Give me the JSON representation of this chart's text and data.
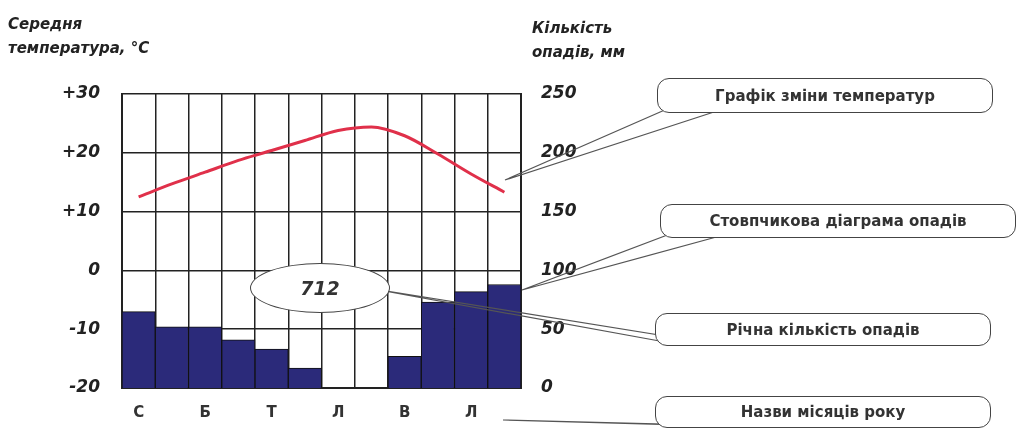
{
  "chart_data": {
    "type": "bar",
    "ylabel": "Середня температура, °C",
    "y2label": "Кількість опадів, мм",
    "categories": [
      "С",
      null,
      "Б",
      null,
      "Т",
      null,
      "Л",
      null,
      "В",
      null,
      "Л",
      null
    ],
    "series": [
      {
        "axis": "y2",
        "color": "#2b2a7a",
        "values": [
          65,
          52,
          52,
          41,
          33,
          17,
          0,
          0,
          27,
          73,
          82,
          88
        ]
      },
      {
        "type": "line",
        "axis": "y",
        "color": "#e0304a",
        "values": [
          12.5,
          14.7,
          16.7,
          18.7,
          20.4,
          22.1,
          23.8,
          24.4,
          22.9,
          19.8,
          16.4,
          13.3
        ]
      }
    ],
    "ylim": [
      -20,
      30
    ],
    "yticks": [
      {
        "value": -20,
        "label": "-20"
      },
      {
        "value": -10,
        "label": "-10"
      },
      0,
      {
        "value": 10,
        "label": "+10"
      },
      {
        "value": 20,
        "label": "+20"
      },
      {
        "value": 30,
        "label": "+30"
      }
    ],
    "y2lim": [
      0,
      250
    ],
    "y2ticks": [
      0,
      50,
      100,
      150,
      200,
      250
    ],
    "grid": true,
    "legend": false,
    "marker": "none",
    "annotations": [
      "Графік зміни температур",
      "Стовпчикова діаграма опадів",
      "712",
      "Річна кількість опадів",
      "Назви місяців року"
    ]
  }
}
